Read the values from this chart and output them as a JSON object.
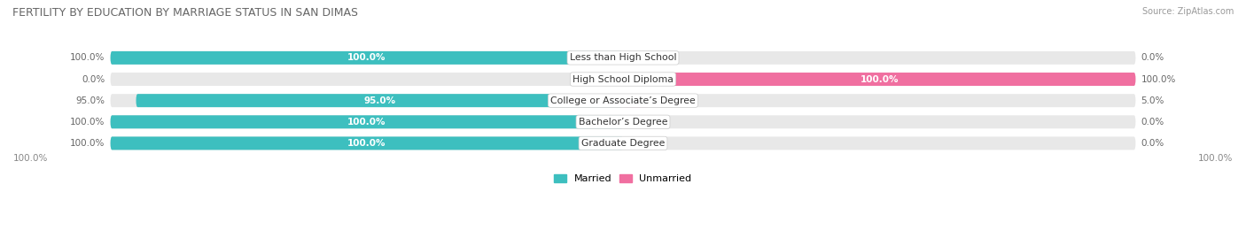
{
  "title": "FERTILITY BY EDUCATION BY MARRIAGE STATUS IN SAN DIMAS",
  "source": "Source: ZipAtlas.com",
  "categories": [
    "Less than High School",
    "High School Diploma",
    "College or Associate’s Degree",
    "Bachelor’s Degree",
    "Graduate Degree"
  ],
  "married": [
    100.0,
    0.0,
    95.0,
    100.0,
    100.0
  ],
  "unmarried": [
    0.0,
    100.0,
    5.0,
    0.0,
    0.0
  ],
  "married_color": "#3dbfbf",
  "unmarried_color": "#f06fa0",
  "bar_bg_color": "#e8e8e8",
  "bar_height": 0.62,
  "figsize": [
    14.06,
    2.69
  ],
  "dpi": 100,
  "title_fontsize": 9.0,
  "label_fontsize": 7.8,
  "bar_label_fontsize": 7.5,
  "legend_fontsize": 8.0,
  "outer_label_fontsize": 7.5,
  "background_color": "#ffffff"
}
